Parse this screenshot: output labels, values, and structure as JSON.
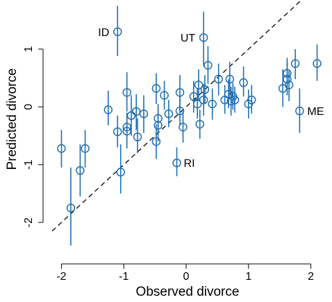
{
  "chart_data": {
    "type": "scatter",
    "title": "",
    "xlabel": "Observed divorce",
    "ylabel": "Predicted divorce",
    "xlim": [
      -2.15,
      2.25
    ],
    "ylim": [
      -2.55,
      1.85
    ],
    "x_ticks": [
      -2,
      -1,
      0,
      1,
      2
    ],
    "y_ticks": [
      -2,
      -1,
      0,
      1
    ],
    "x_tick_labels": [
      "-2",
      "-1",
      "0",
      "1",
      "2"
    ],
    "y_tick_labels": [
      "-2",
      "-1",
      "0",
      "1"
    ],
    "reference_line": {
      "slope": 1,
      "intercept": 0,
      "style": "dashed"
    },
    "colors": {
      "points": "#1f6fb2",
      "reference_line": "#000000",
      "axes": "#000000"
    },
    "points": [
      {
        "x": -2.0,
        "y": -0.72,
        "lo": -1.05,
        "hi": -0.4
      },
      {
        "x": -1.85,
        "y": -1.75,
        "lo": -2.4,
        "hi": -1.05
      },
      {
        "x": -1.7,
        "y": -1.1,
        "lo": -1.55,
        "hi": -0.65
      },
      {
        "x": -1.62,
        "y": -0.72,
        "lo": -1.05,
        "hi": -0.4
      },
      {
        "x": -1.25,
        "y": -0.05,
        "lo": -0.32,
        "hi": 0.28
      },
      {
        "x": -1.1,
        "y": 1.3,
        "lo": 0.88,
        "hi": 1.75,
        "label": "ID"
      },
      {
        "x": -1.1,
        "y": -0.43,
        "lo": -0.7,
        "hi": -0.15
      },
      {
        "x": -1.05,
        "y": -1.13,
        "lo": -1.5,
        "hi": -0.65
      },
      {
        "x": -0.95,
        "y": 0.25,
        "lo": -0.08,
        "hi": 0.6
      },
      {
        "x": -0.95,
        "y": -0.35,
        "lo": -0.6,
        "hi": -0.1
      },
      {
        "x": -0.95,
        "y": -0.42,
        "lo": -0.72,
        "hi": -0.15
      },
      {
        "x": -0.88,
        "y": -0.15,
        "lo": -0.5,
        "hi": 0.2
      },
      {
        "x": -0.8,
        "y": -0.08,
        "lo": -0.4,
        "hi": 0.22
      },
      {
        "x": -0.78,
        "y": -0.52,
        "lo": -0.8,
        "hi": -0.2
      },
      {
        "x": -0.68,
        "y": -0.12,
        "lo": -0.45,
        "hi": 0.2
      },
      {
        "x": -0.48,
        "y": 0.32,
        "lo": 0.05,
        "hi": 0.58
      },
      {
        "x": -0.48,
        "y": -0.6,
        "lo": -0.9,
        "hi": -0.3
      },
      {
        "x": -0.45,
        "y": -0.2,
        "lo": -0.45,
        "hi": 0.05
      },
      {
        "x": -0.45,
        "y": -0.32,
        "lo": -0.6,
        "hi": -0.05
      },
      {
        "x": -0.35,
        "y": 0.2,
        "lo": -0.05,
        "hi": 0.45
      },
      {
        "x": -0.28,
        "y": -0.12,
        "lo": -0.35,
        "hi": 0.12
      },
      {
        "x": -0.15,
        "y": -0.97,
        "lo": -1.2,
        "hi": -0.7,
        "label": "RI"
      },
      {
        "x": -0.1,
        "y": -0.07,
        "lo": -0.32,
        "hi": 0.2
      },
      {
        "x": -0.1,
        "y": 0.25,
        "lo": -0.05,
        "hi": 0.55
      },
      {
        "x": -0.05,
        "y": -0.35,
        "lo": -0.62,
        "hi": -0.08
      },
      {
        "x": 0.12,
        "y": 0.18,
        "lo": -0.1,
        "hi": 0.45
      },
      {
        "x": 0.18,
        "y": 0.05,
        "lo": -0.2,
        "hi": 0.32
      },
      {
        "x": 0.2,
        "y": 0.38,
        "lo": 0.1,
        "hi": 0.65
      },
      {
        "x": 0.22,
        "y": -0.3,
        "lo": -0.55,
        "hi": -0.05
      },
      {
        "x": 0.28,
        "y": 1.2,
        "lo": 0.7,
        "hi": 1.65,
        "label": "UT"
      },
      {
        "x": 0.28,
        "y": 0.12,
        "lo": -0.15,
        "hi": 0.4
      },
      {
        "x": 0.3,
        "y": 0.3,
        "lo": 0.05,
        "hi": 0.55
      },
      {
        "x": 0.35,
        "y": 0.72,
        "lo": 0.4,
        "hi": 1.05
      },
      {
        "x": 0.42,
        "y": 0.05,
        "lo": -0.22,
        "hi": 0.32
      },
      {
        "x": 0.52,
        "y": 0.48,
        "lo": 0.2,
        "hi": 0.75
      },
      {
        "x": 0.62,
        "y": 0.12,
        "lo": -0.12,
        "hi": 0.38
      },
      {
        "x": 0.68,
        "y": 0.22,
        "lo": -0.02,
        "hi": 0.48
      },
      {
        "x": 0.7,
        "y": 0.48,
        "lo": 0.2,
        "hi": 0.78
      },
      {
        "x": 0.72,
        "y": 0.1,
        "lo": -0.15,
        "hi": 0.35
      },
      {
        "x": 0.75,
        "y": 0.18,
        "lo": -0.05,
        "hi": 0.42
      },
      {
        "x": 0.78,
        "y": 0.12,
        "lo": -0.1,
        "hi": 0.35
      },
      {
        "x": 0.92,
        "y": 0.42,
        "lo": 0.18,
        "hi": 0.7
      },
      {
        "x": 1.0,
        "y": 0.05,
        "lo": -0.2,
        "hi": 0.3
      },
      {
        "x": 1.05,
        "y": 0.12,
        "lo": -0.12,
        "hi": 0.38
      },
      {
        "x": 1.55,
        "y": 0.32,
        "lo": 0.0,
        "hi": 0.65
      },
      {
        "x": 1.62,
        "y": 0.58,
        "lo": 0.3,
        "hi": 0.85
      },
      {
        "x": 1.62,
        "y": 0.48,
        "lo": 0.2,
        "hi": 0.78
      },
      {
        "x": 1.65,
        "y": 0.38,
        "lo": 0.1,
        "hi": 0.62
      },
      {
        "x": 1.75,
        "y": 0.75,
        "lo": 0.48,
        "hi": 1.0
      },
      {
        "x": 1.82,
        "y": -0.07,
        "lo": -0.45,
        "hi": 0.32,
        "label": "ME"
      },
      {
        "x": 2.1,
        "y": 0.75,
        "lo": 0.45,
        "hi": 1.08
      }
    ]
  }
}
